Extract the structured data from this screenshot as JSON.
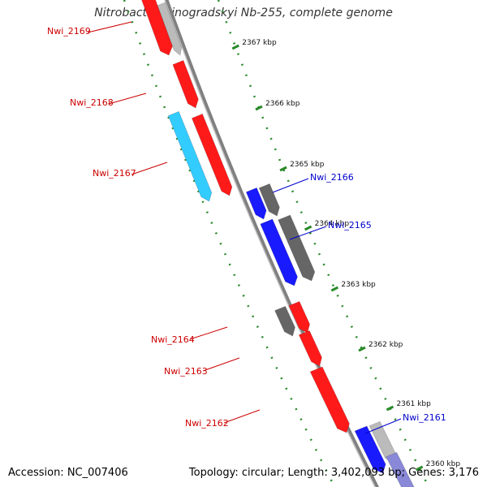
{
  "title": "Nitrobacter winogradskyi Nb-255, complete genome",
  "footer": {
    "accession": "Accession: NC_007406",
    "topology": "Topology: circular; Length: 3,402,093 bp; Genes: 3,176"
  },
  "colors": {
    "forward_gene": "#ff1a1a",
    "forward_gene_alt": "#33ccff",
    "reverse_gene": "#1a1aff",
    "other_gene": "#666666",
    "backbone": "#808080",
    "dotted_track": "#2a8a2a",
    "forward_label": "#cc0000",
    "reverse_label": "#0000cc"
  },
  "ticks": [
    "2367 kbp",
    "2366 kbp",
    "2365 kbp",
    "2364 kbp",
    "2363 kbp",
    "2362 kbp",
    "2361 kbp",
    "2360 kbp"
  ],
  "genes": [
    {
      "name": "Nwi_2169",
      "strand": "forward",
      "color": "#ff1a1a"
    },
    {
      "name": "Nwi_2168",
      "strand": "forward",
      "color": "#ff1a1a"
    },
    {
      "name": "Nwi_2167",
      "strand": "forward",
      "color": "#33ccff"
    },
    {
      "name": "Nwi_2166",
      "strand": "reverse",
      "color": "#1a1aff"
    },
    {
      "name": "Nwi_2165",
      "strand": "reverse",
      "color": "#1a1aff"
    },
    {
      "name": "Nwi_2164",
      "strand": "forward",
      "color": "#ff1a1a"
    },
    {
      "name": "Nwi_2163",
      "strand": "forward",
      "color": "#ff1a1a"
    },
    {
      "name": "Nwi_2162",
      "strand": "forward",
      "color": "#ff1a1a"
    },
    {
      "name": "Nwi_2161",
      "strand": "reverse",
      "color": "#1a1aff"
    }
  ]
}
